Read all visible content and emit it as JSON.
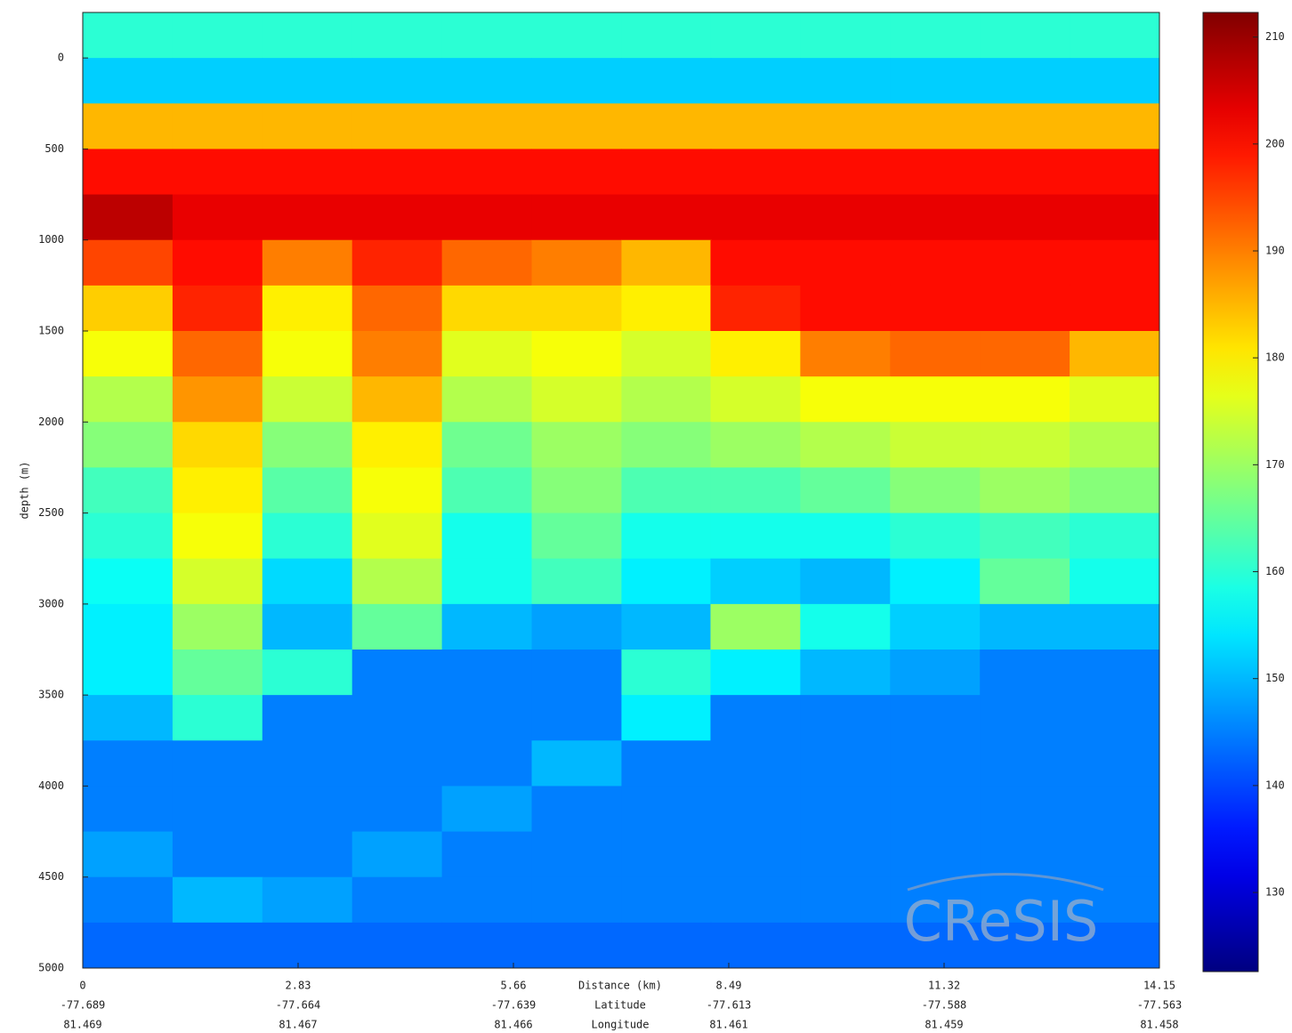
{
  "chart_data": {
    "type": "heatmap",
    "colormap": "jet",
    "y_label": "depth (m)",
    "x_label": "Distance (km)",
    "x_label_2": "Latitude",
    "x_label_3": "Longitude",
    "watermark": "CReSIS",
    "x": [
      0.59,
      1.77,
      2.95,
      4.13,
      5.31,
      6.49,
      7.67,
      8.84,
      10.02,
      11.2,
      12.38,
      13.56
    ],
    "y": [
      -125,
      125,
      375,
      625,
      875,
      1125,
      1375,
      1625,
      1875,
      2125,
      2375,
      2625,
      2875,
      3125,
      3375,
      3625,
      3875,
      4125,
      4375,
      4625,
      4875
    ],
    "values": [
      [
        160,
        160,
        160,
        160,
        160,
        160,
        160,
        160,
        160,
        160,
        160,
        160
      ],
      [
        152,
        152,
        152,
        152,
        152,
        152,
        152,
        152,
        152,
        152,
        152,
        152
      ],
      [
        185,
        185,
        185,
        185,
        185,
        185,
        185,
        185,
        185,
        185,
        185,
        185
      ],
      [
        200,
        200,
        200,
        200,
        200,
        200,
        200,
        200,
        200,
        200,
        200,
        200
      ],
      [
        207,
        203,
        203,
        203,
        203,
        203,
        203,
        203,
        203,
        203,
        203,
        203
      ],
      [
        195,
        200,
        190,
        198,
        192,
        190,
        185,
        200,
        200,
        200,
        200,
        200
      ],
      [
        183,
        198,
        180,
        192,
        182,
        182,
        180,
        198,
        200,
        200,
        200,
        200
      ],
      [
        178,
        192,
        178,
        190,
        176,
        178,
        175,
        180,
        190,
        192,
        192,
        185
      ],
      [
        172,
        188,
        174,
        185,
        172,
        175,
        172,
        175,
        178,
        178,
        178,
        176
      ],
      [
        168,
        182,
        168,
        180,
        166,
        170,
        168,
        170,
        172,
        174,
        174,
        172
      ],
      [
        162,
        180,
        164,
        178,
        163,
        168,
        163,
        163,
        165,
        168,
        170,
        168
      ],
      [
        160,
        178,
        160,
        176,
        158,
        165,
        158,
        158,
        158,
        160,
        162,
        160
      ],
      [
        157,
        175,
        153,
        172,
        158,
        162,
        155,
        152,
        150,
        155,
        165,
        158
      ],
      [
        155,
        170,
        150,
        165,
        150,
        148,
        150,
        170,
        158,
        152,
        150,
        150
      ],
      [
        155,
        165,
        160,
        145,
        145,
        145,
        160,
        155,
        150,
        148,
        145,
        145
      ],
      [
        150,
        160,
        145,
        145,
        145,
        145,
        155,
        145,
        145,
        145,
        145,
        145
      ],
      [
        145,
        145,
        145,
        145,
        145,
        150,
        145,
        145,
        145,
        145,
        145,
        145
      ],
      [
        145,
        145,
        145,
        145,
        148,
        145,
        145,
        145,
        145,
        145,
        145,
        145
      ],
      [
        148,
        145,
        145,
        148,
        145,
        145,
        145,
        145,
        145,
        145,
        145,
        145
      ],
      [
        145,
        150,
        148,
        145,
        145,
        145,
        145,
        145,
        145,
        145,
        145,
        145
      ],
      [
        143,
        143,
        143,
        143,
        143,
        143,
        143,
        143,
        143,
        143,
        143,
        143
      ]
    ],
    "xlim": [
      0,
      14.15
    ],
    "xticks": [
      0,
      2.83,
      5.66,
      8.49,
      11.32,
      14.15
    ],
    "xtick_latitude": [
      -77.689,
      -77.664,
      -77.639,
      -77.613,
      -77.588,
      -77.563
    ],
    "xtick_longitude": [
      81.469,
      81.467,
      81.466,
      81.461,
      81.459,
      81.458
    ],
    "ylim": [
      -250,
      5000
    ],
    "yticks": [
      0,
      500,
      1000,
      1500,
      2000,
      2500,
      3000,
      3500,
      4000,
      4500,
      5000
    ],
    "clim": [
      122.6,
      212.3
    ],
    "cticks": [
      130,
      140,
      150,
      160,
      170,
      180,
      190,
      200,
      210
    ]
  }
}
